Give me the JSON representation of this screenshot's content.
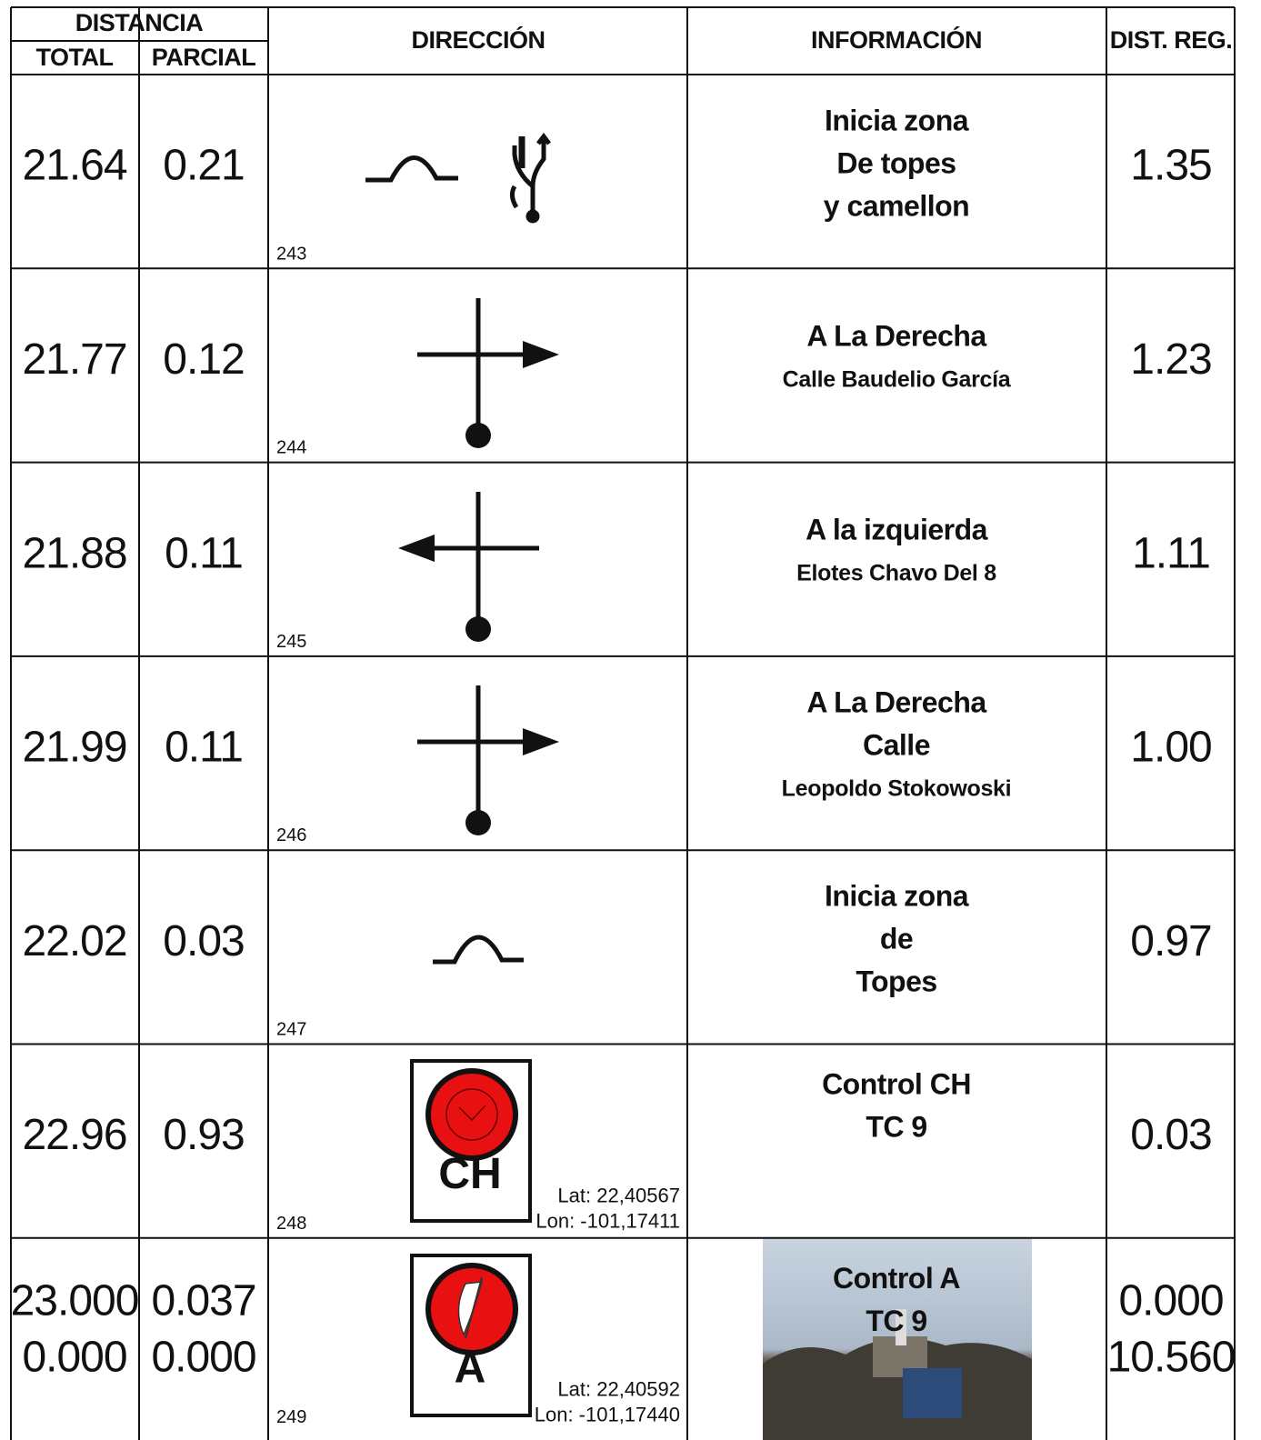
{
  "header": {
    "distancia": "DISTANCIA",
    "total": "TOTAL",
    "parcial": "PARCIAL",
    "direccion": "DIRECCIÓN",
    "informacion": "INFORMACIÓN",
    "dist_reg": "DIST. REG."
  },
  "rows": [
    {
      "total": [
        "21.64"
      ],
      "parcial": [
        "0.21"
      ],
      "number": "243",
      "info": [
        "Inicia zona",
        "De topes",
        "y camellon"
      ],
      "dist_reg": [
        "1.35"
      ]
    },
    {
      "total": [
        "21.77"
      ],
      "parcial": [
        "0.12"
      ],
      "number": "244",
      "info": [
        "A La Derecha",
        "Calle Baudelio García"
      ],
      "dist_reg": [
        "1.23"
      ]
    },
    {
      "total": [
        "21.88"
      ],
      "parcial": [
        "0.11"
      ],
      "number": "245",
      "info": [
        "A la izquierda",
        "Elotes Chavo Del 8"
      ],
      "dist_reg": [
        "1.11"
      ]
    },
    {
      "total": [
        "21.99"
      ],
      "parcial": [
        "0.11"
      ],
      "number": "246",
      "info": [
        "A La Derecha",
        "Calle",
        "Leopoldo Stokowoski"
      ],
      "dist_reg": [
        "1.00"
      ]
    },
    {
      "total": [
        "22.02"
      ],
      "parcial": [
        "0.03"
      ],
      "number": "247",
      "info": [
        "Inicia zona",
        "de",
        "Topes"
      ],
      "dist_reg": [
        "0.97"
      ]
    },
    {
      "total": [
        "22.96"
      ],
      "parcial": [
        "0.93"
      ],
      "number": "248",
      "icon_text": "CH",
      "coords": [
        "Lat: 22,40567",
        "Lon: -101,17411"
      ],
      "info": [
        "Control CH",
        "TC 9"
      ],
      "dist_reg": [
        "0.03"
      ]
    },
    {
      "total": [
        "23.000",
        "0.000"
      ],
      "parcial": [
        "0.037",
        "0.000"
      ],
      "number": "249",
      "icon_text": "A",
      "coords": [
        "Lat: 22,40592",
        "Lon: -101,17440"
      ],
      "info": [
        "Control A",
        "TC 9"
      ],
      "dist_reg": [
        "0.000",
        "10.560"
      ]
    }
  ]
}
